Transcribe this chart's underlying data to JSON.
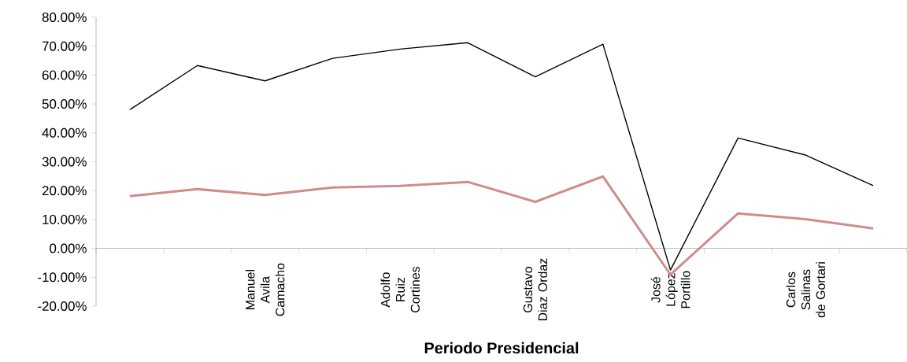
{
  "chart_data": {
    "type": "line",
    "xlabel": "Periodo Presidencial",
    "categories": [
      null,
      null,
      "Manuel Avila Camacho",
      null,
      "Adolfo Ruiz Cortines",
      null,
      "Gustavo Diaz Ordaz",
      null,
      "José López Portillo",
      null,
      "Carlos Salinas de Gortari",
      null
    ],
    "series": [
      {
        "color": "#000000",
        "values": [
          48,
          63.3,
          58,
          65.8,
          69,
          71.2,
          59.4,
          70.7,
          -7.5,
          38.2,
          32.3,
          21.7
        ]
      },
      {
        "color": "#d08c8c",
        "values": [
          18.1,
          20.5,
          18.5,
          21.1,
          21.6,
          23,
          16.1,
          24.9,
          -9.1,
          12.1,
          10.1,
          6.9
        ]
      }
    ],
    "ylim": [
      -20,
      80
    ],
    "yticks": [
      {
        "value": -20,
        "label": "-20.00%"
      },
      {
        "value": -10,
        "label": "-10.00%"
      },
      {
        "value": 0,
        "label": "0.00%"
      },
      {
        "value": 10,
        "label": "10.00%"
      },
      {
        "value": 20,
        "label": "20.00%"
      },
      {
        "value": 30,
        "label": "30.00%"
      },
      {
        "value": 40,
        "label": "40.00%"
      },
      {
        "value": 50,
        "label": "50.00%"
      },
      {
        "value": 60,
        "label": "60.00%"
      },
      {
        "value": 70,
        "label": "70.00%"
      },
      {
        "value": 80,
        "label": "80.00%"
      }
    ],
    "marker": "none",
    "line_style": "solid",
    "grid": false
  }
}
